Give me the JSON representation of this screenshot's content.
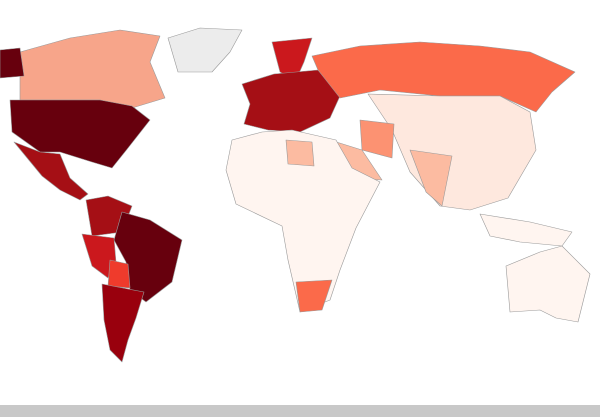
{
  "map": {
    "type": "choropleth",
    "colors": [
      "#ececec",
      "#f7a58a",
      "#67000d",
      "#a50f15",
      "#cb181d",
      "#ef3b2c",
      "#99000d",
      "#fb6a4a",
      "#fc9272",
      "#fcbba1",
      "#fee8de",
      "#fff5f0"
    ]
  }
}
